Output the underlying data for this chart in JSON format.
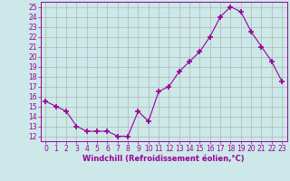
{
  "x": [
    0,
    1,
    2,
    3,
    4,
    5,
    6,
    7,
    8,
    9,
    10,
    11,
    12,
    13,
    14,
    15,
    16,
    17,
    18,
    19,
    20,
    21,
    22,
    23
  ],
  "y": [
    15.5,
    15.0,
    14.5,
    13.0,
    12.5,
    12.5,
    12.5,
    12.0,
    12.0,
    14.5,
    13.5,
    16.5,
    17.0,
    18.5,
    19.5,
    20.5,
    22.0,
    24.0,
    25.0,
    24.5,
    22.5,
    21.0,
    19.5,
    17.5
  ],
  "line_color": "#990099",
  "marker": "+",
  "marker_size": 4,
  "marker_lw": 1.2,
  "bg_color": "#cce8e8",
  "grid_color": "#aaaaaa",
  "xlabel": "Windchill (Refroidissement éolien,°C)",
  "ylabel_ticks": [
    12,
    13,
    14,
    15,
    16,
    17,
    18,
    19,
    20,
    21,
    22,
    23,
    24,
    25
  ],
  "xlim": [
    -0.5,
    23.5
  ],
  "ylim": [
    11.5,
    25.5
  ],
  "xticks": [
    0,
    1,
    2,
    3,
    4,
    5,
    6,
    7,
    8,
    9,
    10,
    11,
    12,
    13,
    14,
    15,
    16,
    17,
    18,
    19,
    20,
    21,
    22,
    23
  ],
  "tick_fontsize": 5.5,
  "xlabel_fontsize": 6.0,
  "linewidth": 0.8
}
